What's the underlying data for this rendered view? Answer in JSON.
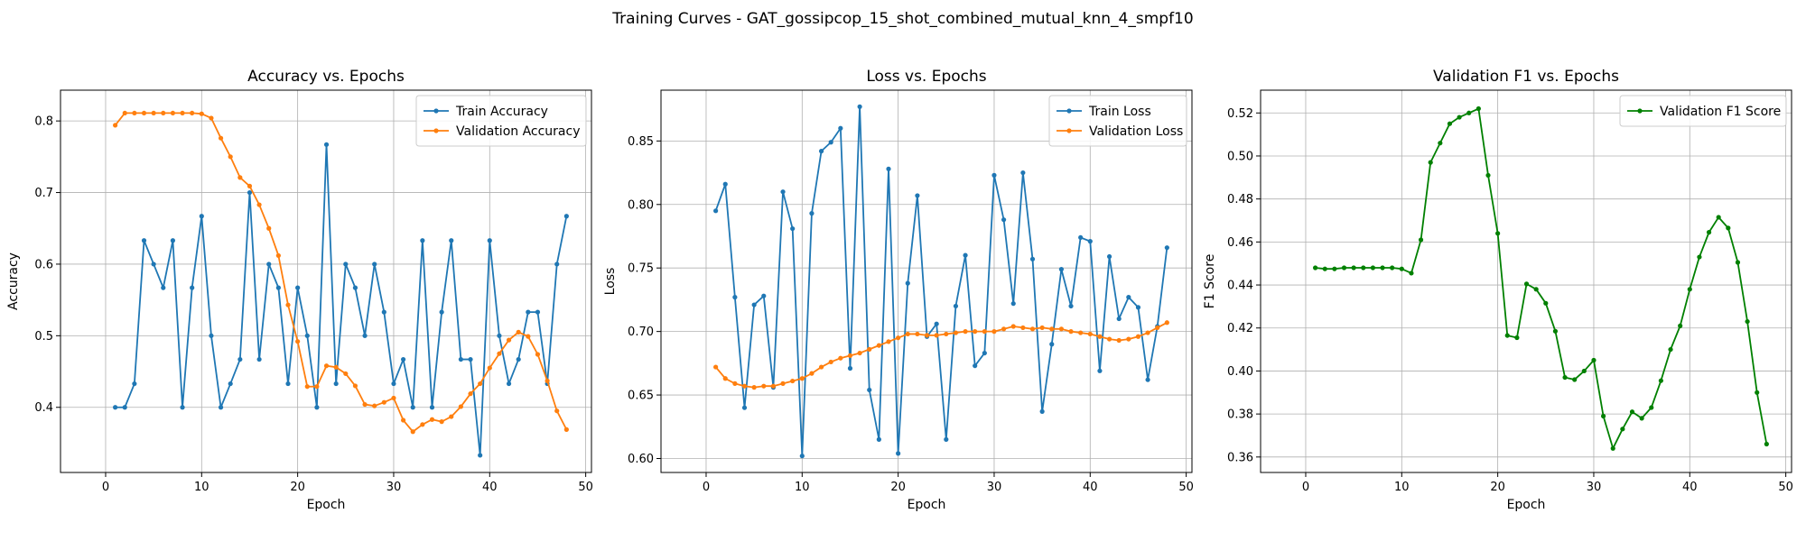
{
  "figure": {
    "title": "Training Curves - GAT_gossipcop_15_shot_combined_mutual_knn_4_smpf10"
  },
  "chart_data": [
    {
      "type": "line",
      "title": "Accuracy vs. Epochs",
      "xlabel": "Epoch",
      "ylabel": "Accuracy",
      "xlim": [
        -4.7,
        50.6
      ],
      "ylim": [
        0.309,
        0.843
      ],
      "xticks": [
        0,
        10,
        20,
        30,
        40,
        50
      ],
      "yticks": [
        0.4,
        0.5,
        0.6,
        0.7,
        0.8
      ],
      "grid": true,
      "legend_position": "top-right",
      "x": [
        1,
        2,
        3,
        4,
        5,
        6,
        7,
        8,
        9,
        10,
        11,
        12,
        13,
        14,
        15,
        16,
        17,
        18,
        19,
        20,
        21,
        22,
        23,
        24,
        25,
        26,
        27,
        28,
        29,
        30,
        31,
        32,
        33,
        34,
        35,
        36,
        37,
        38,
        39,
        40,
        41,
        42,
        43,
        44,
        45,
        46,
        47,
        48
      ],
      "series": [
        {
          "name": "Train Accuracy",
          "color": "#1f77b4",
          "values": [
            0.4,
            0.4,
            0.433,
            0.633,
            0.6,
            0.567,
            0.633,
            0.4,
            0.567,
            0.667,
            0.5,
            0.4,
            0.433,
            0.467,
            0.7,
            0.467,
            0.6,
            0.567,
            0.433,
            0.567,
            0.5,
            0.4,
            0.767,
            0.433,
            0.6,
            0.567,
            0.5,
            0.6,
            0.533,
            0.433,
            0.467,
            0.4,
            0.633,
            0.4,
            0.533,
            0.633,
            0.467,
            0.467,
            0.333,
            0.633,
            0.5,
            0.433,
            0.467,
            0.533,
            0.533,
            0.433,
            0.6,
            0.667
          ]
        },
        {
          "name": "Validation Accuracy",
          "color": "#ff7f0e",
          "values": [
            0.794,
            0.811,
            0.811,
            0.811,
            0.811,
            0.811,
            0.811,
            0.811,
            0.811,
            0.81,
            0.804,
            0.776,
            0.75,
            0.721,
            0.709,
            0.683,
            0.65,
            0.612,
            0.543,
            0.492,
            0.429,
            0.429,
            0.458,
            0.456,
            0.447,
            0.43,
            0.404,
            0.402,
            0.407,
            0.413,
            0.382,
            0.366,
            0.376,
            0.383,
            0.38,
            0.387,
            0.401,
            0.419,
            0.433,
            0.455,
            0.475,
            0.494,
            0.505,
            0.499,
            0.474,
            0.437,
            0.395,
            0.369
          ]
        }
      ]
    },
    {
      "type": "line",
      "title": "Loss vs. Epochs",
      "xlabel": "Epoch",
      "ylabel": "Loss",
      "xlim": [
        -4.7,
        50.6
      ],
      "ylim": [
        0.589,
        0.89
      ],
      "xticks": [
        0,
        10,
        20,
        30,
        40,
        50
      ],
      "yticks": [
        0.6,
        0.65,
        0.7,
        0.75,
        0.8,
        0.85
      ],
      "grid": true,
      "legend_position": "top-right",
      "x": [
        1,
        2,
        3,
        4,
        5,
        6,
        7,
        8,
        9,
        10,
        11,
        12,
        13,
        14,
        15,
        16,
        17,
        18,
        19,
        20,
        21,
        22,
        23,
        24,
        25,
        26,
        27,
        28,
        29,
        30,
        31,
        32,
        33,
        34,
        35,
        36,
        37,
        38,
        39,
        40,
        41,
        42,
        43,
        44,
        45,
        46,
        47,
        48
      ],
      "series": [
        {
          "name": "Train Loss",
          "color": "#1f77b4",
          "values": [
            0.795,
            0.816,
            0.727,
            0.64,
            0.721,
            0.728,
            0.656,
            0.81,
            0.781,
            0.602,
            0.793,
            0.842,
            0.849,
            0.86,
            0.671,
            0.877,
            0.654,
            0.615,
            0.828,
            0.604,
            0.738,
            0.807,
            0.696,
            0.706,
            0.615,
            0.72,
            0.76,
            0.673,
            0.683,
            0.823,
            0.788,
            0.722,
            0.825,
            0.757,
            0.637,
            0.69,
            0.749,
            0.72,
            0.774,
            0.771,
            0.669,
            0.759,
            0.71,
            0.727,
            0.719,
            0.662,
            0.704,
            0.766
          ]
        },
        {
          "name": "Validation Loss",
          "color": "#ff7f0e",
          "values": [
            0.672,
            0.663,
            0.659,
            0.657,
            0.656,
            0.657,
            0.657,
            0.659,
            0.661,
            0.663,
            0.667,
            0.672,
            0.676,
            0.679,
            0.681,
            0.683,
            0.686,
            0.689,
            0.692,
            0.695,
            0.698,
            0.698,
            0.697,
            0.697,
            0.698,
            0.699,
            0.7,
            0.7,
            0.7,
            0.7,
            0.702,
            0.704,
            0.703,
            0.702,
            0.703,
            0.702,
            0.702,
            0.7,
            0.699,
            0.698,
            0.696,
            0.694,
            0.693,
            0.694,
            0.696,
            0.699,
            0.703,
            0.707
          ]
        }
      ]
    },
    {
      "type": "line",
      "title": "Validation F1 vs. Epochs",
      "xlabel": "Epoch",
      "ylabel": "F1 Score",
      "xlim": [
        -4.7,
        50.6
      ],
      "ylim": [
        0.3528,
        0.5306
      ],
      "xticks": [
        0,
        10,
        20,
        30,
        40,
        50
      ],
      "yticks": [
        0.36,
        0.38,
        0.4,
        0.42,
        0.44,
        0.46,
        0.48,
        0.5,
        0.52
      ],
      "grid": true,
      "legend_position": "top-right",
      "x": [
        1,
        2,
        3,
        4,
        5,
        6,
        7,
        8,
        9,
        10,
        11,
        12,
        13,
        14,
        15,
        16,
        17,
        18,
        19,
        20,
        21,
        22,
        23,
        24,
        25,
        26,
        27,
        28,
        29,
        30,
        31,
        32,
        33,
        34,
        35,
        36,
        37,
        38,
        39,
        40,
        41,
        42,
        43,
        44,
        45,
        46,
        47,
        48
      ],
      "series": [
        {
          "name": "Validation F1 Score",
          "color": "#008000",
          "values": [
            0.448,
            0.4475,
            0.4475,
            0.448,
            0.448,
            0.448,
            0.448,
            0.448,
            0.448,
            0.4475,
            0.4455,
            0.461,
            0.497,
            0.506,
            0.515,
            0.518,
            0.52,
            0.522,
            0.491,
            0.464,
            0.4165,
            0.4155,
            0.4405,
            0.438,
            0.4315,
            0.4185,
            0.397,
            0.396,
            0.4,
            0.405,
            0.379,
            0.364,
            0.373,
            0.381,
            0.378,
            0.383,
            0.3955,
            0.41,
            0.421,
            0.438,
            0.453,
            0.4645,
            0.4715,
            0.4665,
            0.4505,
            0.423,
            0.39,
            0.366
          ]
        }
      ]
    }
  ]
}
